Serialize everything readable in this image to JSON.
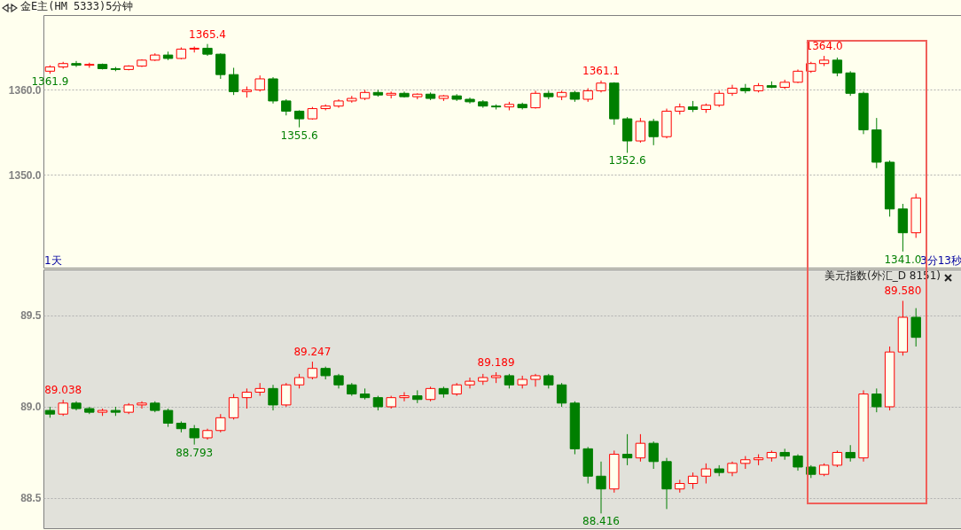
{
  "chart_data": [
    {
      "type": "candlestick",
      "title": "金E主(HM 5333)5分钟",
      "categories": [
        null,
        null,
        null,
        null,
        null,
        null,
        null,
        null,
        null,
        null,
        null,
        null,
        null,
        null,
        null,
        null,
        null,
        null,
        null,
        null,
        null,
        null,
        null,
        null,
        null,
        null,
        null,
        null,
        null,
        null,
        null,
        null,
        null,
        null,
        null,
        null,
        null,
        null,
        null,
        null,
        null,
        null,
        null,
        null,
        null,
        null,
        null,
        null,
        null,
        null,
        null,
        null,
        null,
        null,
        null,
        null,
        null,
        null,
        null,
        null,
        null,
        null,
        null,
        null,
        null,
        null,
        null,
        null,
        null,
        null
      ],
      "ohlc": [
        [
          1362.2,
          1362.9,
          1361.9,
          1362.7
        ],
        [
          1362.7,
          1363.3,
          1362.5,
          1363.1
        ],
        [
          1363.1,
          1363.4,
          1362.7,
          1362.9
        ],
        [
          1362.9,
          1363.2,
          1362.6,
          1363.0
        ],
        [
          1363.0,
          1363.1,
          1362.4,
          1362.5
        ],
        [
          1362.5,
          1362.7,
          1362.2,
          1362.4
        ],
        [
          1362.4,
          1362.9,
          1362.3,
          1362.8
        ],
        [
          1362.8,
          1363.6,
          1362.7,
          1363.5
        ],
        [
          1363.5,
          1364.3,
          1363.4,
          1364.1
        ],
        [
          1364.1,
          1364.5,
          1363.5,
          1363.7
        ],
        [
          1363.7,
          1365.0,
          1363.6,
          1364.8
        ],
        [
          1364.8,
          1365.1,
          1364.4,
          1364.9
        ],
        [
          1364.9,
          1365.4,
          1364.0,
          1364.2
        ],
        [
          1364.2,
          1364.3,
          1361.3,
          1361.8
        ],
        [
          1361.8,
          1362.6,
          1359.4,
          1359.8
        ],
        [
          1359.8,
          1360.4,
          1359.1,
          1360.0
        ],
        [
          1360.0,
          1361.7,
          1359.8,
          1361.3
        ],
        [
          1361.3,
          1361.5,
          1358.4,
          1358.7
        ],
        [
          1358.7,
          1358.9,
          1357.0,
          1357.5
        ],
        [
          1357.5,
          1357.6,
          1355.6,
          1356.6
        ],
        [
          1356.6,
          1358.0,
          1356.5,
          1357.8
        ],
        [
          1357.8,
          1358.3,
          1357.6,
          1358.1
        ],
        [
          1358.1,
          1358.9,
          1357.9,
          1358.7
        ],
        [
          1358.7,
          1359.3,
          1358.5,
          1359.0
        ],
        [
          1359.0,
          1360.0,
          1358.8,
          1359.7
        ],
        [
          1359.7,
          1360.0,
          1359.2,
          1359.4
        ],
        [
          1359.4,
          1359.8,
          1359.0,
          1359.6
        ],
        [
          1359.6,
          1359.8,
          1359.1,
          1359.2
        ],
        [
          1359.2,
          1359.6,
          1358.9,
          1359.5
        ],
        [
          1359.5,
          1359.7,
          1358.8,
          1359.0
        ],
        [
          1359.0,
          1359.4,
          1358.7,
          1359.3
        ],
        [
          1359.3,
          1359.5,
          1358.7,
          1358.9
        ],
        [
          1358.9,
          1359.1,
          1358.4,
          1358.6
        ],
        [
          1358.6,
          1358.8,
          1357.9,
          1358.1
        ],
        [
          1358.1,
          1358.3,
          1357.7,
          1358.0
        ],
        [
          1358.0,
          1358.6,
          1357.6,
          1358.3
        ],
        [
          1358.3,
          1358.5,
          1357.7,
          1357.9
        ],
        [
          1357.9,
          1359.9,
          1357.8,
          1359.6
        ],
        [
          1359.6,
          1359.9,
          1358.9,
          1359.2
        ],
        [
          1359.2,
          1359.9,
          1358.8,
          1359.7
        ],
        [
          1359.7,
          1359.9,
          1358.6,
          1358.9
        ],
        [
          1358.9,
          1360.2,
          1358.6,
          1359.9
        ],
        [
          1359.9,
          1361.1,
          1359.7,
          1360.8
        ],
        [
          1360.8,
          1360.9,
          1355.9,
          1356.6
        ],
        [
          1356.6,
          1356.8,
          1352.6,
          1354.0
        ],
        [
          1354.0,
          1356.7,
          1353.8,
          1356.3
        ],
        [
          1356.3,
          1356.6,
          1353.5,
          1354.5
        ],
        [
          1354.5,
          1357.8,
          1354.3,
          1357.5
        ],
        [
          1357.5,
          1358.4,
          1357.1,
          1358.0
        ],
        [
          1358.0,
          1358.7,
          1357.4,
          1357.7
        ],
        [
          1357.7,
          1358.4,
          1357.3,
          1358.2
        ],
        [
          1358.2,
          1359.9,
          1358.0,
          1359.6
        ],
        [
          1359.6,
          1360.6,
          1359.3,
          1360.2
        ],
        [
          1360.2,
          1360.7,
          1359.6,
          1359.9
        ],
        [
          1359.9,
          1360.8,
          1359.7,
          1360.5
        ],
        [
          1360.5,
          1361.0,
          1360.2,
          1360.3
        ],
        [
          1360.3,
          1361.2,
          1360.1,
          1360.9
        ],
        [
          1360.9,
          1362.4,
          1360.8,
          1362.2
        ],
        [
          1362.2,
          1363.3,
          1362.0,
          1363.1
        ],
        [
          1363.1,
          1364.0,
          1362.8,
          1363.5
        ],
        [
          1363.5,
          1363.8,
          1361.6,
          1362.0
        ],
        [
          1362.0,
          1362.2,
          1359.3,
          1359.6
        ],
        [
          1359.6,
          1359.8,
          1354.8,
          1355.3
        ],
        [
          1355.3,
          1356.7,
          1350.8,
          1351.5
        ],
        [
          1351.5,
          1351.7,
          1345.1,
          1346.0
        ],
        [
          1346.0,
          1346.6,
          1341.0,
          1343.2
        ],
        [
          1343.2,
          1347.8,
          1342.6,
          1347.3
        ],
        null,
        null,
        null
      ],
      "ylim": [
        1339.1,
        1368.8
      ],
      "yticks": [
        {
          "value": 1350,
          "label": "1350.0"
        },
        {
          "value": 1360,
          "label": "1360.0"
        }
      ],
      "grid": "y",
      "tick_labels": "y",
      "annotations": [
        {
          "text": "1361.9",
          "y": 1361.9
        },
        {
          "text": "1365.4",
          "y": 1365.4
        },
        {
          "text": "1355.6",
          "y": 1355.6
        },
        {
          "text": "1361.1",
          "y": 1361.1
        },
        {
          "text": "1352.6",
          "y": 1352.6
        },
        {
          "text": "1364.0",
          "y": 1364.0
        },
        {
          "text": "1341.0",
          "y": 1341.0
        },
        "1天",
        "3分13秒"
      ]
    },
    {
      "type": "candlestick",
      "title": "美元指数(外汇_D 8151)",
      "categories": [
        null,
        null,
        null,
        null,
        null,
        null,
        null,
        null,
        null,
        null,
        null,
        null,
        null,
        null,
        null,
        null,
        null,
        null,
        null,
        null,
        null,
        null,
        null,
        null,
        null,
        null,
        null,
        null,
        null,
        null,
        null,
        null,
        null,
        null,
        null,
        null,
        null,
        null,
        null,
        null,
        null,
        null,
        null,
        null,
        null,
        null,
        null,
        null,
        null,
        null,
        null,
        null,
        null,
        null,
        null,
        null,
        null,
        null,
        null,
        null,
        null,
        null,
        null,
        null,
        null,
        null,
        null,
        null,
        null,
        null
      ],
      "ohlc": [
        [
          88.98,
          89.0,
          88.94,
          88.96
        ],
        [
          88.96,
          89.038,
          88.95,
          89.02
        ],
        [
          89.02,
          89.03,
          88.98,
          88.99
        ],
        [
          88.99,
          89.0,
          88.96,
          88.97
        ],
        [
          88.97,
          88.99,
          88.95,
          88.98
        ],
        [
          88.98,
          89.0,
          88.95,
          88.97
        ],
        [
          88.97,
          89.02,
          88.96,
          89.01
        ],
        [
          89.01,
          89.03,
          88.99,
          89.02
        ],
        [
          89.02,
          89.03,
          88.97,
          88.98
        ],
        [
          88.98,
          88.99,
          88.89,
          88.91
        ],
        [
          88.91,
          88.92,
          88.86,
          88.88
        ],
        [
          88.88,
          88.9,
          88.793,
          88.83
        ],
        [
          88.83,
          88.88,
          88.82,
          88.87
        ],
        [
          88.87,
          88.96,
          88.86,
          88.94
        ],
        [
          88.94,
          89.07,
          88.93,
          89.05
        ],
        [
          89.05,
          89.1,
          88.99,
          89.08
        ],
        [
          89.08,
          89.13,
          89.06,
          89.1
        ],
        [
          89.1,
          89.12,
          88.98,
          89.01
        ],
        [
          89.01,
          89.13,
          89.0,
          89.12
        ],
        [
          89.12,
          89.18,
          89.1,
          89.16
        ],
        [
          89.16,
          89.247,
          89.15,
          89.21
        ],
        [
          89.21,
          89.22,
          89.15,
          89.17
        ],
        [
          89.17,
          89.18,
          89.1,
          89.12
        ],
        [
          89.12,
          89.13,
          89.06,
          89.07
        ],
        [
          89.07,
          89.1,
          89.04,
          89.05
        ],
        [
          89.05,
          89.06,
          88.98,
          89.0
        ],
        [
          89.0,
          89.06,
          88.99,
          89.05
        ],
        [
          89.05,
          89.08,
          89.03,
          89.06
        ],
        [
          89.06,
          89.09,
          89.02,
          89.04
        ],
        [
          89.04,
          89.11,
          89.03,
          89.1
        ],
        [
          89.1,
          89.11,
          89.05,
          89.07
        ],
        [
          89.07,
          89.13,
          89.06,
          89.12
        ],
        [
          89.12,
          89.16,
          89.1,
          89.14
        ],
        [
          89.14,
          89.18,
          89.12,
          89.16
        ],
        [
          89.16,
          89.189,
          89.13,
          89.17
        ],
        [
          89.17,
          89.18,
          89.1,
          89.12
        ],
        [
          89.12,
          89.17,
          89.1,
          89.15
        ],
        [
          89.15,
          89.18,
          89.11,
          89.17
        ],
        [
          89.17,
          89.18,
          89.1,
          89.12
        ],
        [
          89.12,
          89.13,
          89.0,
          89.02
        ],
        [
          89.02,
          89.03,
          88.74,
          88.77
        ],
        [
          88.77,
          88.78,
          88.58,
          88.62
        ],
        [
          88.62,
          88.7,
          88.416,
          88.55
        ],
        [
          88.55,
          88.76,
          88.53,
          88.74
        ],
        [
          88.74,
          88.85,
          88.68,
          88.72
        ],
        [
          88.72,
          88.85,
          88.7,
          88.8
        ],
        [
          88.8,
          88.81,
          88.66,
          88.7
        ],
        [
          88.7,
          88.72,
          88.44,
          88.55
        ],
        [
          88.55,
          88.6,
          88.53,
          88.58
        ],
        [
          88.58,
          88.64,
          88.55,
          88.62
        ],
        [
          88.62,
          88.69,
          88.58,
          88.66
        ],
        [
          88.66,
          88.68,
          88.62,
          88.64
        ],
        [
          88.64,
          88.7,
          88.62,
          88.69
        ],
        [
          88.69,
          88.73,
          88.66,
          88.71
        ],
        [
          88.71,
          88.74,
          88.68,
          88.72
        ],
        [
          88.72,
          88.76,
          88.7,
          88.75
        ],
        [
          88.75,
          88.77,
          88.71,
          88.73
        ],
        [
          88.73,
          88.74,
          88.65,
          88.67
        ],
        [
          88.67,
          88.68,
          88.61,
          88.63
        ],
        [
          88.63,
          88.69,
          88.62,
          88.68
        ],
        [
          88.68,
          88.76,
          88.67,
          88.75
        ],
        [
          88.75,
          88.79,
          88.7,
          88.72
        ],
        [
          88.72,
          89.09,
          88.7,
          89.07
        ],
        [
          89.07,
          89.1,
          88.97,
          89.0
        ],
        [
          89.0,
          89.33,
          88.98,
          89.3
        ],
        [
          89.3,
          89.58,
          89.28,
          89.49
        ],
        [
          89.49,
          89.54,
          89.33,
          89.38
        ],
        null,
        null,
        null
      ],
      "ylim": [
        88.335,
        89.752
      ],
      "yticks": [
        {
          "value": 88.5,
          "label": "88.5"
        },
        {
          "value": 89.0,
          "label": "89.0"
        },
        {
          "value": 89.5,
          "label": "89.5"
        }
      ],
      "grid": "y",
      "tick_labels": "y",
      "annotations": [
        {
          "text": "89.038",
          "y": 89.038
        },
        {
          "text": "88.793",
          "y": 88.793
        },
        {
          "text": "89.247",
          "y": 89.247
        },
        {
          "text": "89.189",
          "y": 89.189
        },
        {
          "text": "88.416",
          "y": 88.416
        },
        {
          "text": "89.580",
          "y": 89.58
        }
      ]
    }
  ]
}
